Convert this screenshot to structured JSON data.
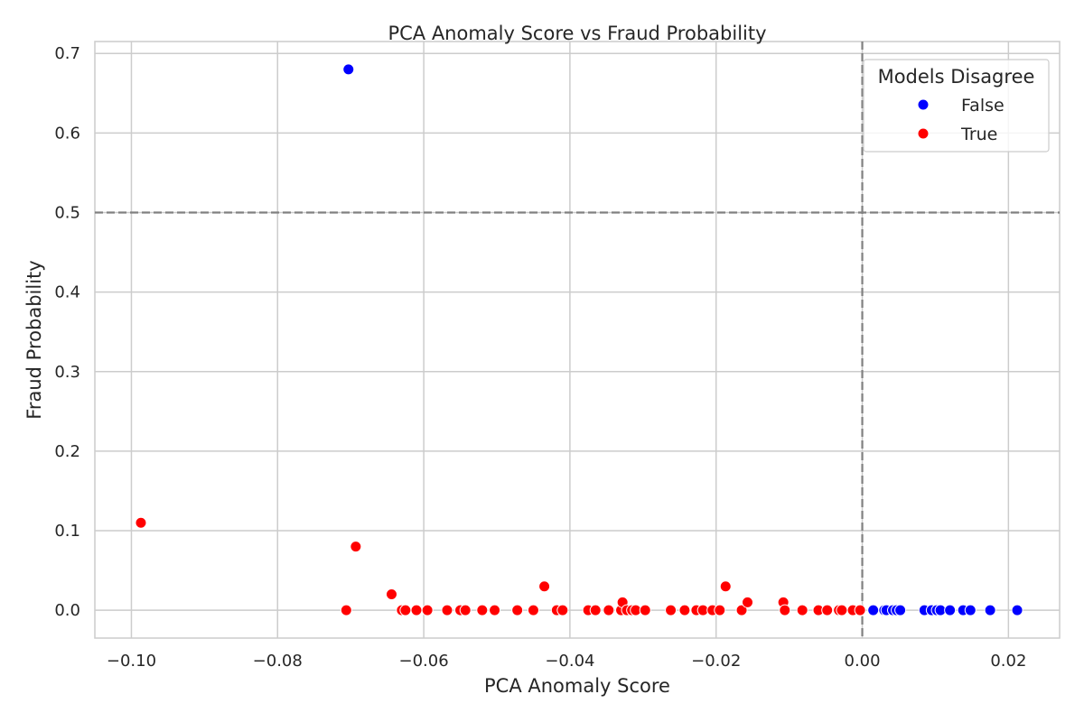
{
  "chart_data": {
    "type": "scatter",
    "title": "PCA Anomaly Score vs Fraud Probability",
    "xlabel": "PCA Anomaly Score",
    "ylabel": "Fraud Probability",
    "xlim": [
      -0.105,
      0.027
    ],
    "ylim": [
      -0.035,
      0.715
    ],
    "xticks": [
      -0.1,
      -0.08,
      -0.06,
      -0.04,
      -0.02,
      0.0,
      0.02
    ],
    "xtick_labels": [
      "−0.10",
      "−0.08",
      "−0.06",
      "−0.04",
      "−0.02",
      "0.00",
      "0.02"
    ],
    "yticks": [
      0.0,
      0.1,
      0.2,
      0.3,
      0.4,
      0.5,
      0.6,
      0.7
    ],
    "ytick_labels": [
      "0.0",
      "0.1",
      "0.2",
      "0.3",
      "0.4",
      "0.5",
      "0.6",
      "0.7"
    ],
    "grid": true,
    "reference_lines": {
      "horizontal": 0.5,
      "vertical": 0.0
    },
    "legend": {
      "title": "Models Disagree",
      "placement": "top-right",
      "entries": [
        {
          "label": "False",
          "color": "#0000ff"
        },
        {
          "label": "True",
          "color": "#ff0000"
        }
      ]
    },
    "series": [
      {
        "name": "False",
        "color": "#0000ff",
        "points": [
          [
            -0.0703,
            0.68
          ],
          [
            0.0015,
            0.0
          ],
          [
            0.003,
            0.0
          ],
          [
            0.0033,
            0.0
          ],
          [
            0.0042,
            0.0
          ],
          [
            0.0047,
            0.0
          ],
          [
            0.0052,
            0.0
          ],
          [
            0.0085,
            0.0
          ],
          [
            0.0095,
            0.0
          ],
          [
            0.0102,
            0.0
          ],
          [
            0.0107,
            0.0
          ],
          [
            0.012,
            0.0
          ],
          [
            0.0138,
            0.0
          ],
          [
            0.0148,
            0.0
          ],
          [
            0.0175,
            0.0
          ],
          [
            0.0212,
            0.0
          ]
        ]
      },
      {
        "name": "True",
        "color": "#ff0000",
        "points": [
          [
            -0.0987,
            0.11
          ],
          [
            -0.0706,
            0.0
          ],
          [
            -0.0693,
            0.08
          ],
          [
            -0.0644,
            0.02
          ],
          [
            -0.063,
            0.0
          ],
          [
            -0.0625,
            0.0
          ],
          [
            -0.061,
            0.0
          ],
          [
            -0.0595,
            0.0
          ],
          [
            -0.0568,
            0.0
          ],
          [
            -0.055,
            0.0
          ],
          [
            -0.0543,
            0.0
          ],
          [
            -0.052,
            0.0
          ],
          [
            -0.0503,
            0.0
          ],
          [
            -0.0472,
            0.0
          ],
          [
            -0.045,
            0.0
          ],
          [
            -0.0435,
            0.03
          ],
          [
            -0.0418,
            0.0
          ],
          [
            -0.041,
            0.0
          ],
          [
            -0.0375,
            0.0
          ],
          [
            -0.0365,
            0.0
          ],
          [
            -0.0347,
            0.0
          ],
          [
            -0.033,
            0.0
          ],
          [
            -0.0328,
            0.01
          ],
          [
            -0.0322,
            0.0
          ],
          [
            -0.0315,
            0.0
          ],
          [
            -0.031,
            0.0
          ],
          [
            -0.0297,
            0.0
          ],
          [
            -0.0262,
            0.0
          ],
          [
            -0.0243,
            0.0
          ],
          [
            -0.0227,
            0.0
          ],
          [
            -0.0218,
            0.0
          ],
          [
            -0.0205,
            0.0
          ],
          [
            -0.0195,
            0.0
          ],
          [
            -0.0187,
            0.03
          ],
          [
            -0.0165,
            0.0
          ],
          [
            -0.0157,
            0.01
          ],
          [
            -0.0108,
            0.01
          ],
          [
            -0.0106,
            0.0
          ],
          [
            -0.0082,
            0.0
          ],
          [
            -0.006,
            0.0
          ],
          [
            -0.0048,
            0.0
          ],
          [
            -0.0032,
            0.0
          ],
          [
            -0.0028,
            0.0
          ],
          [
            -0.0013,
            0.0
          ],
          [
            -0.0003,
            0.0
          ]
        ]
      }
    ]
  }
}
